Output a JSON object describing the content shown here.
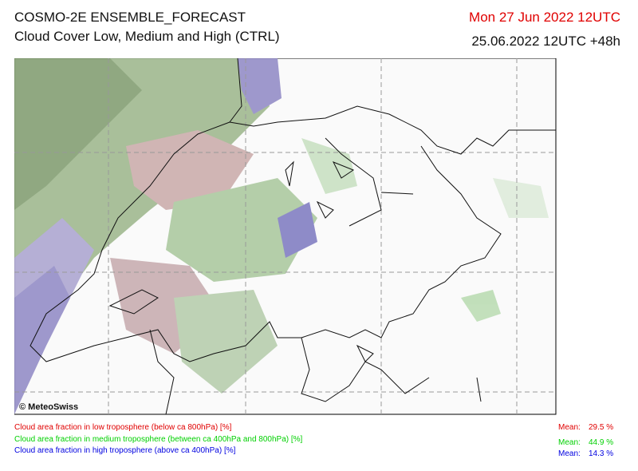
{
  "header": {
    "title": "COSMO-2E ENSEMBLE_FORECAST",
    "subtitle": "Cloud Cover Low, Medium and High (CTRL)",
    "valid_time": "Mon 27 Jun 2022 12UTC",
    "run_time": "25.06.2022 12UTC +48h"
  },
  "map": {
    "copyright": "© MeteoSwiss"
  },
  "legend": [
    {
      "label": "Cloud area fraction in low troposphere (below ca 800hPa) [%]",
      "mean_label": "Mean:",
      "mean": "29.5 %",
      "color": "#e00000"
    },
    {
      "label": "Cloud area fraction in medium troposphere (between ca 400hPa and 800hPa) [%]",
      "mean_label": "Mean:",
      "mean": "44.9 %",
      "color": "#00d000"
    },
    {
      "label": "Cloud area fraction in high troposphere (above ca 400hPa) [%]",
      "mean_label": "Mean:",
      "mean": "14.3 %",
      "color": "#0000e0"
    }
  ]
}
